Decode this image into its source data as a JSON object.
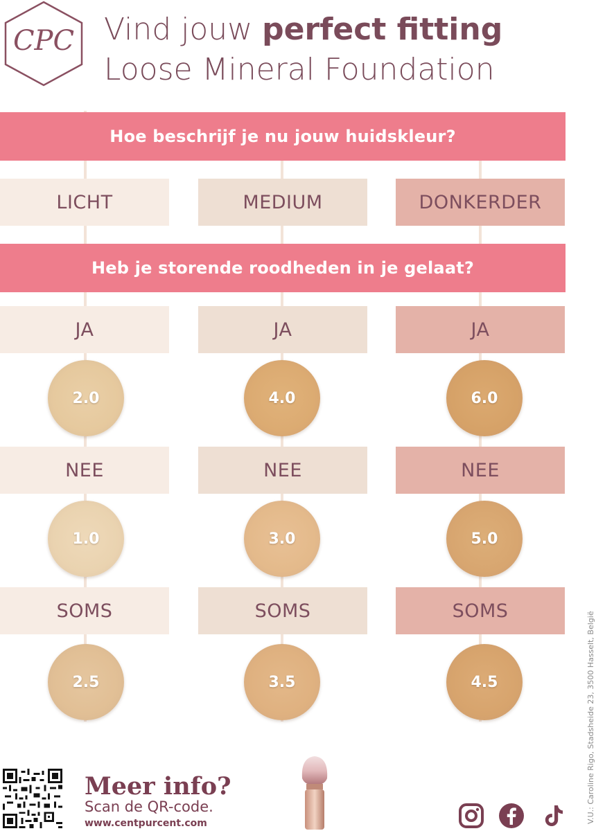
{
  "header": {
    "logo_text": "CPC",
    "title_prefix": "Vind jouw ",
    "title_bold": "perfect fitting",
    "title_line2": "Loose Mineral Foundation"
  },
  "questions": {
    "q1": "Hoe beschrijf je nu jouw huidskleur?",
    "q2": "Heb je storende roodheden in je gelaat?"
  },
  "skin_tones": [
    "LICHT",
    "MEDIUM",
    "DONKERDER"
  ],
  "answers": {
    "ja": "JA",
    "nee": "NEE",
    "soms": "SOMS"
  },
  "shades": {
    "ja": [
      "2.0",
      "4.0",
      "6.0"
    ],
    "nee": [
      "1.0",
      "3.0",
      "5.0"
    ],
    "soms": [
      "2.5",
      "3.5",
      "4.5"
    ]
  },
  "colors": {
    "question_bar": "#ee7d8c",
    "text": "#7d4e5e",
    "col_licht": "#f7ece4",
    "col_medium": "#eedfd3",
    "col_donkerder": "#e4b2a8"
  },
  "footer": {
    "meer_info": "Meer info?",
    "scan": "Scan de QR-code.",
    "url": "www.centpurcent.com",
    "vu": "V.U.: Caroline Rigo, Stadsheide 23, 3500 Hasselt, België",
    "icons": [
      "qr-code-icon",
      "brush-icon",
      "instagram-icon",
      "facebook-icon",
      "tiktok-icon"
    ]
  }
}
